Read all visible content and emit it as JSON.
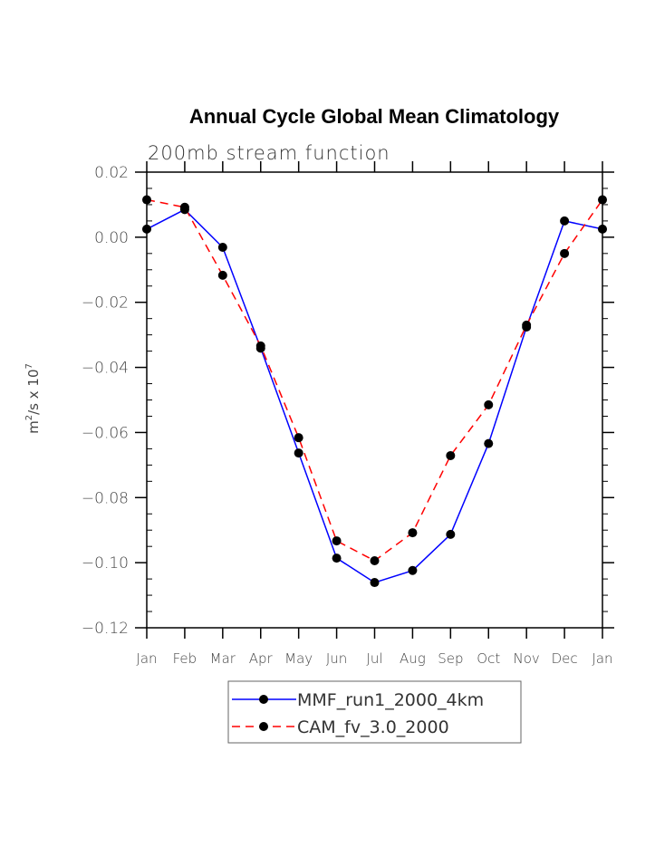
{
  "chart_data": {
    "type": "line",
    "title": "Annual Cycle Global Mean Climatology",
    "subtitle": "200mb stream function",
    "xlabel": "",
    "ylabel": "m²/s x 10⁷",
    "ylabel_parts": {
      "base": "m",
      "sup1": "2",
      "mid": "/s x 10",
      "sup2": "7"
    },
    "categories": [
      "Jan",
      "Feb",
      "Mar",
      "Apr",
      "May",
      "Jun",
      "Jul",
      "Aug",
      "Sep",
      "Oct",
      "Nov",
      "Dec",
      "Jan"
    ],
    "ylim": [
      -0.12,
      0.02
    ],
    "yticks": [
      0.02,
      0.0,
      -0.02,
      -0.04,
      -0.06,
      -0.08,
      -0.1,
      -0.12
    ],
    "ytick_labels": [
      "0.02",
      "0.00",
      "−0.02",
      "−0.04",
      "−0.06",
      "−0.08",
      "−0.10",
      "−0.12"
    ],
    "minor_ytick_step": 0.005,
    "grid": false,
    "legend_position": "bottom-center",
    "series": [
      {
        "name": "MMF_run1_2000_4km",
        "color": "#0000ff",
        "line_style": "solid",
        "marker": "filled-circle",
        "marker_color": "#000000",
        "values": [
          0.0025,
          0.0085,
          -0.0031,
          -0.0341,
          -0.0663,
          -0.0986,
          -0.1061,
          -0.1024,
          -0.0913,
          -0.0634,
          -0.0276,
          0.005,
          0.0025
        ]
      },
      {
        "name": "CAM_fv_3.0_2000",
        "color": "#ff0000",
        "line_style": "dashed",
        "marker": "filled-circle",
        "marker_color": "#000000",
        "values": [
          0.0115,
          0.0092,
          -0.0117,
          -0.0334,
          -0.0616,
          -0.0933,
          -0.0994,
          -0.0908,
          -0.0671,
          -0.0515,
          -0.027,
          -0.005,
          0.0115
        ]
      }
    ]
  }
}
